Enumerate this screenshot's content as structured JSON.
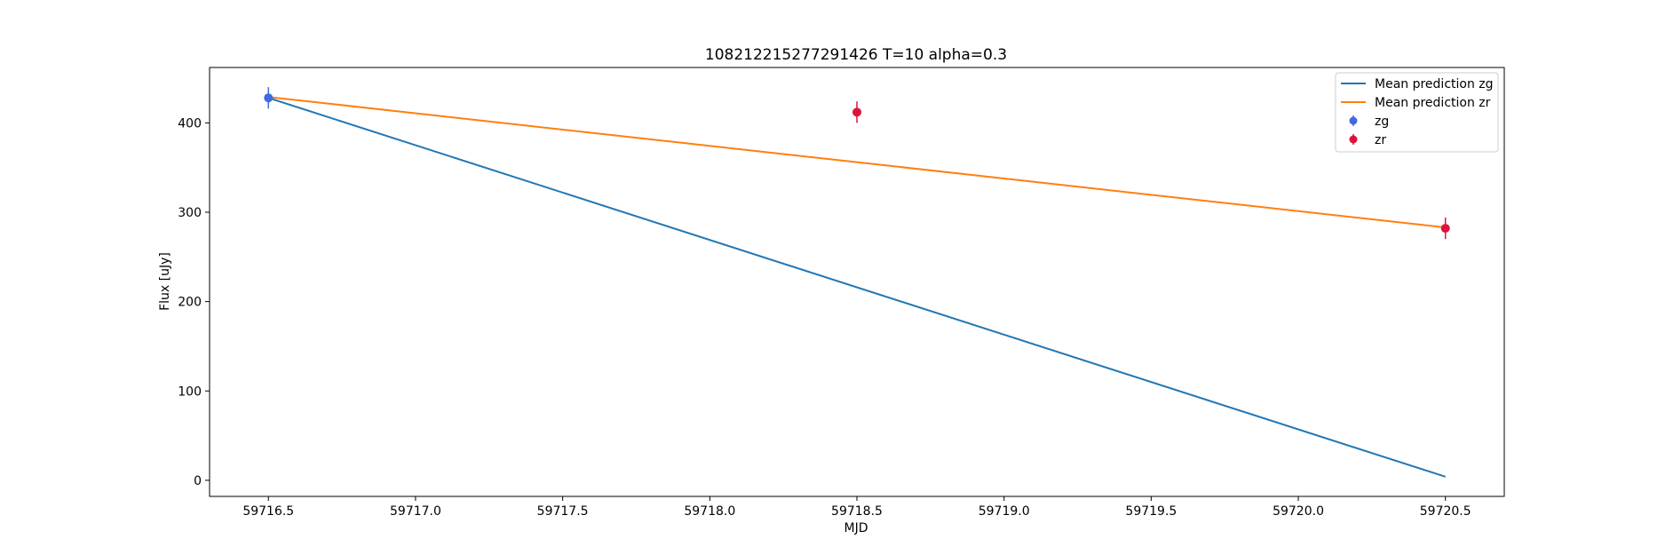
{
  "chart_data": {
    "type": "line",
    "title": "108212215277291426 T=10 alpha=0.3",
    "xlabel": "MJD",
    "ylabel": "Flux [uJy]",
    "xlim": [
      59716.3,
      59720.7
    ],
    "ylim": [
      -18,
      462
    ],
    "x_ticks": [
      59716.5,
      59717.0,
      59717.5,
      59718.0,
      59718.5,
      59719.0,
      59719.5,
      59720.0,
      59720.5
    ],
    "x_tick_labels": [
      "59716.5",
      "59717.0",
      "59717.5",
      "59718.0",
      "59718.5",
      "59719.0",
      "59719.5",
      "59720.0",
      "59720.5"
    ],
    "y_ticks": [
      0,
      100,
      200,
      300,
      400
    ],
    "y_tick_labels": [
      "0",
      "100",
      "200",
      "300",
      "400"
    ],
    "grid": false,
    "legend_position": "top-right",
    "lines": [
      {
        "name": "Mean prediction zg",
        "color": "#1f77b4",
        "x": [
          59716.5,
          59720.5
        ],
        "y": [
          428,
          4
        ]
      },
      {
        "name": "Mean prediction zr",
        "color": "#ff7f0e",
        "x": [
          59716.5,
          59720.5
        ],
        "y": [
          429,
          283
        ]
      }
    ],
    "points": [
      {
        "name": "zg",
        "color": "#4169e1",
        "x": [
          59716.5
        ],
        "y": [
          428
        ],
        "err": [
          12
        ]
      },
      {
        "name": "zr",
        "color": "#dc143c",
        "x": [
          59718.5,
          59720.5
        ],
        "y": [
          412,
          282
        ],
        "err": [
          12,
          12
        ]
      }
    ]
  }
}
